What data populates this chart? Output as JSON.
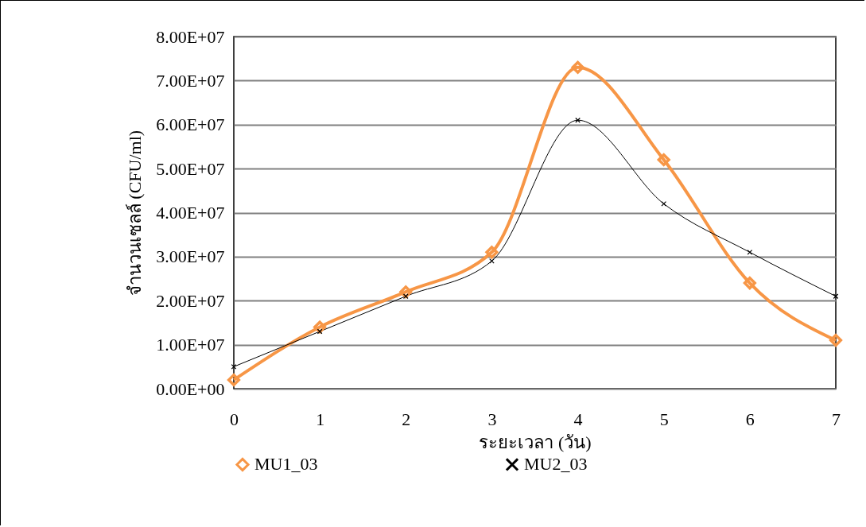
{
  "chart_data": {
    "type": "line",
    "xlabel": "ระยะเวลา (วัน)",
    "ylabel": "จำนวนเซลล์ (CFU/ml)",
    "categories": [
      "0",
      "1",
      "2",
      "3",
      "4",
      "5",
      "6",
      "7"
    ],
    "series": [
      {
        "name": "MU1_03",
        "color": "#f79646",
        "marker": "diamond",
        "values": [
          2000000,
          14000000,
          22000000,
          31000000,
          73000000,
          52000000,
          24000000,
          11000000
        ]
      },
      {
        "name": "MU2_03",
        "color": "#000000",
        "marker": "cross",
        "values": [
          5000000,
          13000000,
          21000000,
          29000000,
          61000000,
          42000000,
          31000000,
          21000000
        ]
      }
    ],
    "ylim": [
      0,
      80000000
    ],
    "yticks": [
      {
        "value": 0,
        "label": "0.00E+00"
      },
      {
        "value": 10000000,
        "label": "1.00E+07"
      },
      {
        "value": 20000000,
        "label": "2.00E+07"
      },
      {
        "value": 30000000,
        "label": "3.00E+07"
      },
      {
        "value": 40000000,
        "label": "4.00E+07"
      },
      {
        "value": 50000000,
        "label": "5.00E+07"
      },
      {
        "value": 60000000,
        "label": "6.00E+07"
      },
      {
        "value": 70000000,
        "label": "7.00E+07"
      },
      {
        "value": 80000000,
        "label": "8.00E+07"
      }
    ],
    "grid": "y",
    "legend": "bottom"
  }
}
